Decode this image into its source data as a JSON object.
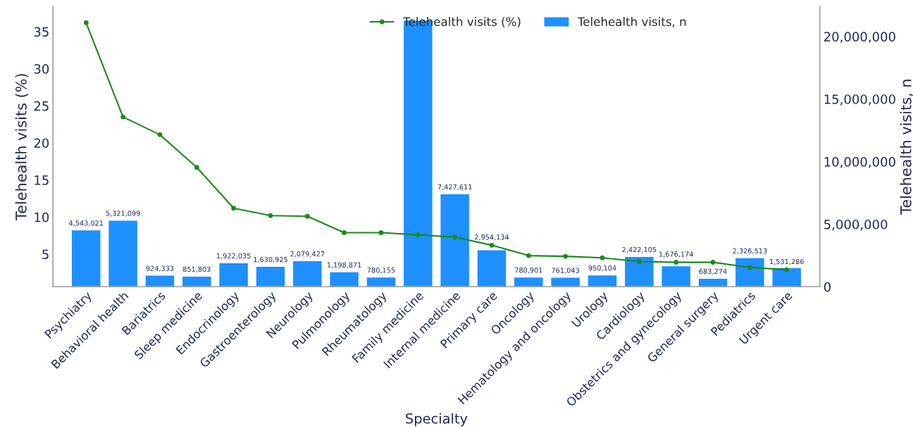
{
  "chart_data": {
    "type": "bar",
    "xlabel": "Specialty",
    "ylabel": "Telehealth visits (%)",
    "y2label": "Telehealth visits, n",
    "categories": [
      "Psychiatry",
      "Behavioral health",
      "Bariatrics",
      "Sleep medicine",
      "Endocrinology",
      "Gastroenterology",
      "Neurology",
      "Pulmonology",
      "Rheumatology",
      "Family medicine",
      "Internal medicine",
      "Primary care",
      "Oncology",
      "Hematology and oncology",
      "Urology",
      "Cardiology",
      "Obstetrics and gynecology",
      "General surgery",
      "Pediatrics",
      "Urgent care"
    ],
    "series": [
      {
        "name": "Telehealth visits, n",
        "type": "bar",
        "axis": "y2",
        "color": "#1e90ff",
        "values": [
          4543021,
          5321099,
          924333,
          851803,
          1922035,
          1630925,
          2079427,
          1198871,
          780155,
          21300000,
          7427611,
          2954134,
          780901,
          761043,
          950104,
          2422105,
          1676174,
          683274,
          2326513,
          1531286
        ],
        "value_labels": [
          "4,543,021",
          "5,321,099",
          "924,333",
          "851,803",
          "1,922,035",
          "1,630,925",
          "2,079,427",
          "1,198,871",
          "780,155",
          null,
          "7,427,611",
          "2,954,134",
          "780,901",
          "761,043",
          "950,104",
          "2,422,105",
          "1,676,174",
          "683,274",
          "2,326,513",
          "1,531,286"
        ]
      },
      {
        "name": "Telehealth visits (%)",
        "type": "line",
        "color": "#1a8a1a",
        "marker": "circle",
        "line_style": "solid",
        "values": [
          36.2,
          23.5,
          21.1,
          16.7,
          11.2,
          10.2,
          10.1,
          7.9,
          7.9,
          7.6,
          7.3,
          6.2,
          4.8,
          4.7,
          4.5,
          4.0,
          3.9,
          3.9,
          3.2,
          2.9
        ]
      }
    ],
    "ylim": [
      0.6,
      38.4
    ],
    "yticks": [
      5,
      10,
      15,
      20,
      25,
      30,
      35
    ],
    "y2lim": [
      0,
      22400000
    ],
    "y2ticks": [
      {
        "value": 0,
        "label": "0"
      },
      {
        "value": 5000000,
        "label": "5,000,000"
      },
      {
        "value": 10000000,
        "label": "10,000,000"
      },
      {
        "value": 15000000,
        "label": "15,000,000"
      },
      {
        "value": 20000000,
        "label": "20,000,000"
      }
    ],
    "grid": false,
    "legend": "top"
  }
}
